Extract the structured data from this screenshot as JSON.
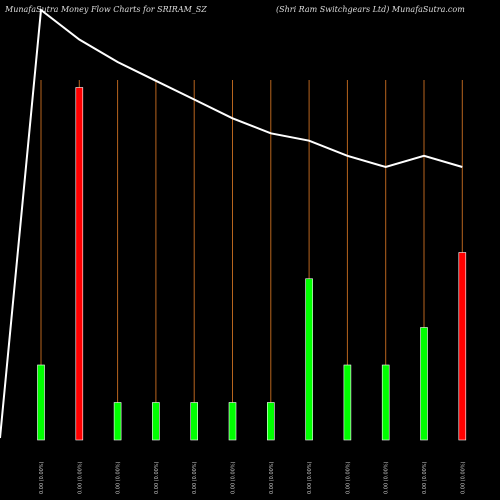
{
  "header": {
    "left": "MunafaSutra  Money Flow  Charts for SRIRAM_SZ",
    "right": "(Shri   Ram Switchgears Ltd) MunafaSutra.com"
  },
  "colors": {
    "background": "#000000",
    "up": "#00ff00",
    "down": "#ff0000",
    "line": "#ffffff",
    "grid": "#b8651e",
    "text": "#cccccc"
  },
  "chart_data": {
    "type": "bar",
    "categories": [
      "0.00 (0.00%)",
      "0.00 (0.00%)",
      "0.00 (0.00%)",
      "0.00 (0.00%)",
      "0.00 (0.00%)",
      "0.00 (0.00%)",
      "0.00 (0.00%)",
      "0.00 (0.00%)",
      "0.00 (0.00%)",
      "0.00 (0.00%)",
      "0.00 (0.00%)",
      "0.00 (0.00%)"
    ],
    "series": [
      {
        "kind": "bar",
        "values": [
          20,
          94,
          10,
          10,
          10,
          10,
          10,
          43,
          20,
          20,
          30,
          50
        ],
        "direction": [
          "up",
          "down",
          "up",
          "up",
          "up",
          "up",
          "up",
          "up",
          "up",
          "up",
          "up",
          "down"
        ]
      },
      {
        "kind": "line",
        "values": [
          100,
          94,
          88,
          83,
          78,
          73,
          69,
          67,
          63,
          60,
          63,
          60
        ]
      }
    ],
    "title": "",
    "xlabel": "",
    "ylabel": "",
    "ylim": [
      0,
      100
    ],
    "grid": true
  }
}
